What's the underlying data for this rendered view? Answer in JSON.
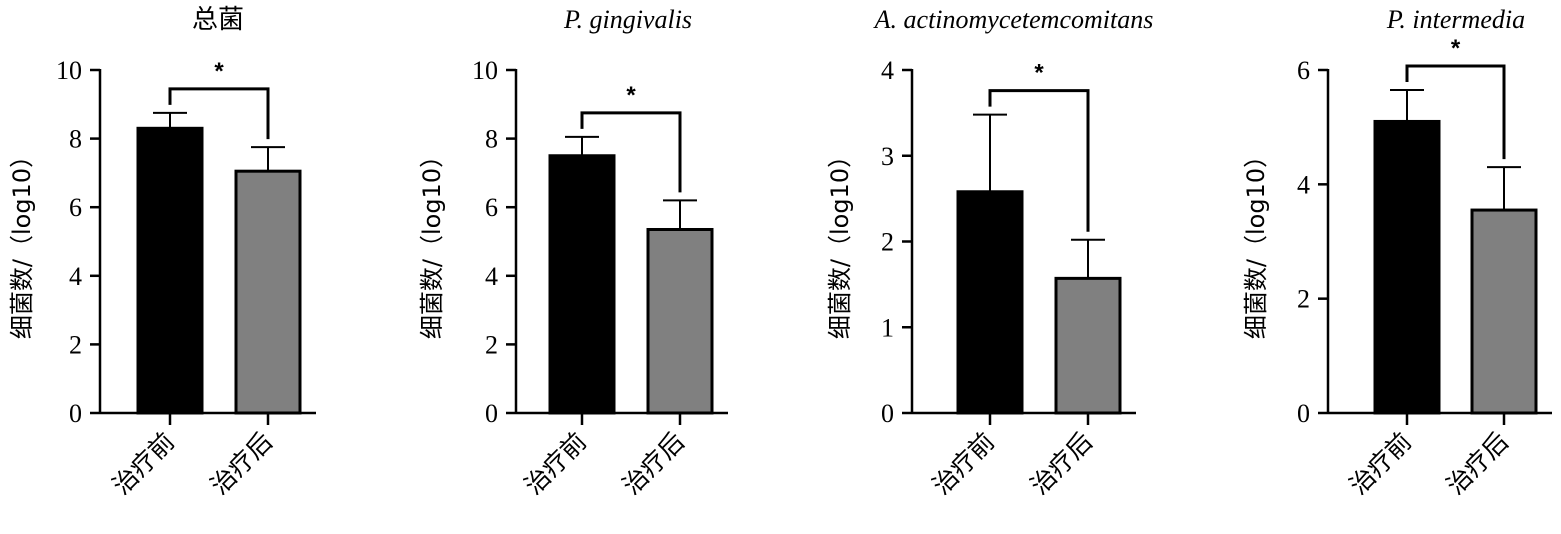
{
  "chart_data": [
    {
      "type": "bar",
      "title": "总菌",
      "title_italic": false,
      "ylabel": "细菌数/（log10）",
      "categories": [
        "治疗前",
        "治疗后"
      ],
      "values": [
        8.3,
        7.05
      ],
      "error": [
        0.45,
        0.7
      ],
      "ylim": [
        0,
        10
      ],
      "yticks": [
        0,
        2,
        4,
        6,
        8,
        10
      ],
      "significance": "*",
      "bar_colors": [
        "#000000",
        "#808080"
      ]
    },
    {
      "type": "bar",
      "title": "P. gingivalis",
      "title_italic": true,
      "ylabel": "细菌数/（log10）",
      "categories": [
        "治疗前",
        "治疗后"
      ],
      "values": [
        7.5,
        5.35
      ],
      "error": [
        0.55,
        0.85
      ],
      "ylim": [
        0,
        10
      ],
      "yticks": [
        0,
        2,
        4,
        6,
        8,
        10
      ],
      "significance": "*",
      "bar_colors": [
        "#000000",
        "#808080"
      ]
    },
    {
      "type": "bar",
      "title": "A. actinomycetemcomitans",
      "title_italic": true,
      "ylabel": "细菌数/（log10）",
      "categories": [
        "治疗前",
        "治疗后"
      ],
      "values": [
        2.58,
        1.57
      ],
      "error": [
        0.9,
        0.45
      ],
      "ylim": [
        0,
        4
      ],
      "yticks": [
        0,
        1,
        2,
        3,
        4
      ],
      "significance": "*",
      "bar_colors": [
        "#000000",
        "#808080"
      ]
    },
    {
      "type": "bar",
      "title": "P. intermedia",
      "title_italic": true,
      "ylabel": "细菌数/（log10）",
      "categories": [
        "治疗前",
        "治疗后"
      ],
      "values": [
        5.1,
        3.55
      ],
      "error": [
        0.55,
        0.75
      ],
      "ylim": [
        0,
        6
      ],
      "yticks": [
        0,
        2,
        4,
        6
      ],
      "significance": "*",
      "bar_colors": [
        "#000000",
        "#808080"
      ]
    }
  ]
}
